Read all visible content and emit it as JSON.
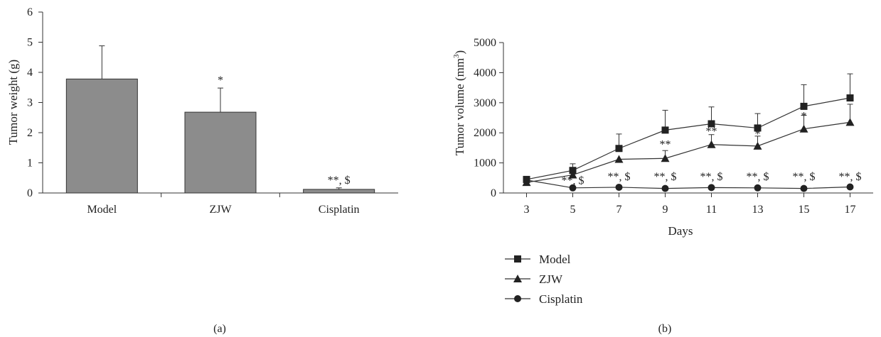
{
  "chart_data": [
    {
      "type": "bar",
      "panel_label": "(a)",
      "ylabel": "Tumor weight (g)",
      "ylim": [
        0,
        6
      ],
      "yticks": [
        "0",
        "1",
        "2",
        "3",
        "4",
        "5",
        "6"
      ],
      "categories": [
        "Model",
        "ZJW",
        "Cisplatin"
      ],
      "values": [
        3.78,
        2.68,
        0.12
      ],
      "errors": [
        1.1,
        0.8,
        0.05
      ],
      "annotations": [
        "",
        "*",
        "**, $"
      ],
      "bar_color": "#8c8c8c",
      "grid": false
    },
    {
      "type": "line",
      "panel_label": "(b)",
      "xlabel": "Days",
      "ylabel_main": "Tumor volume (mm",
      "ylabel_sup": "3",
      "ylabel_close": ")",
      "ylim": [
        0,
        5000
      ],
      "yticks": [
        "0",
        "1000",
        "2000",
        "3000",
        "4000",
        "5000"
      ],
      "x": [
        3,
        5,
        7,
        9,
        11,
        13,
        15,
        17
      ],
      "xticks": [
        "3",
        "5",
        "7",
        "9",
        "11",
        "13",
        "15",
        "17"
      ],
      "grid": false,
      "legend_position": "bottom-left",
      "series": [
        {
          "name": "Model",
          "marker": "square",
          "values": [
            450,
            750,
            1480,
            2090,
            2300,
            2160,
            2880,
            3160
          ],
          "errors": [
            0,
            220,
            480,
            660,
            560,
            480,
            720,
            800
          ]
        },
        {
          "name": "ZJW",
          "marker": "triangle",
          "values": [
            350,
            600,
            1120,
            1150,
            1610,
            1560,
            2130,
            2350
          ],
          "errors": [
            0,
            0,
            0,
            260,
            330,
            330,
            450,
            600
          ]
        },
        {
          "name": "Cisplatin",
          "marker": "circle",
          "values": [
            430,
            170,
            190,
            150,
            180,
            170,
            150,
            200
          ],
          "errors": [
            0,
            0,
            0,
            0,
            0,
            0,
            0,
            0
          ]
        }
      ],
      "annotations": [
        {
          "x": 9,
          "y": 1500,
          "text": "**"
        },
        {
          "x": 11,
          "y": 1930,
          "text": "**"
        },
        {
          "x": 13,
          "y": 1840,
          "text": "*"
        },
        {
          "x": 15,
          "y": 2440,
          "text": "*"
        },
        {
          "x": 17,
          "y": 2960,
          "text": "*"
        },
        {
          "x": 5,
          "y": 300,
          "text": "**, $"
        },
        {
          "x": 7,
          "y": 420,
          "text": "**, $"
        },
        {
          "x": 9,
          "y": 420,
          "text": "**, $"
        },
        {
          "x": 11,
          "y": 420,
          "text": "**, $"
        },
        {
          "x": 13,
          "y": 420,
          "text": "**, $"
        },
        {
          "x": 15,
          "y": 420,
          "text": "**, $"
        },
        {
          "x": 17,
          "y": 420,
          "text": "**, $"
        }
      ]
    }
  ]
}
